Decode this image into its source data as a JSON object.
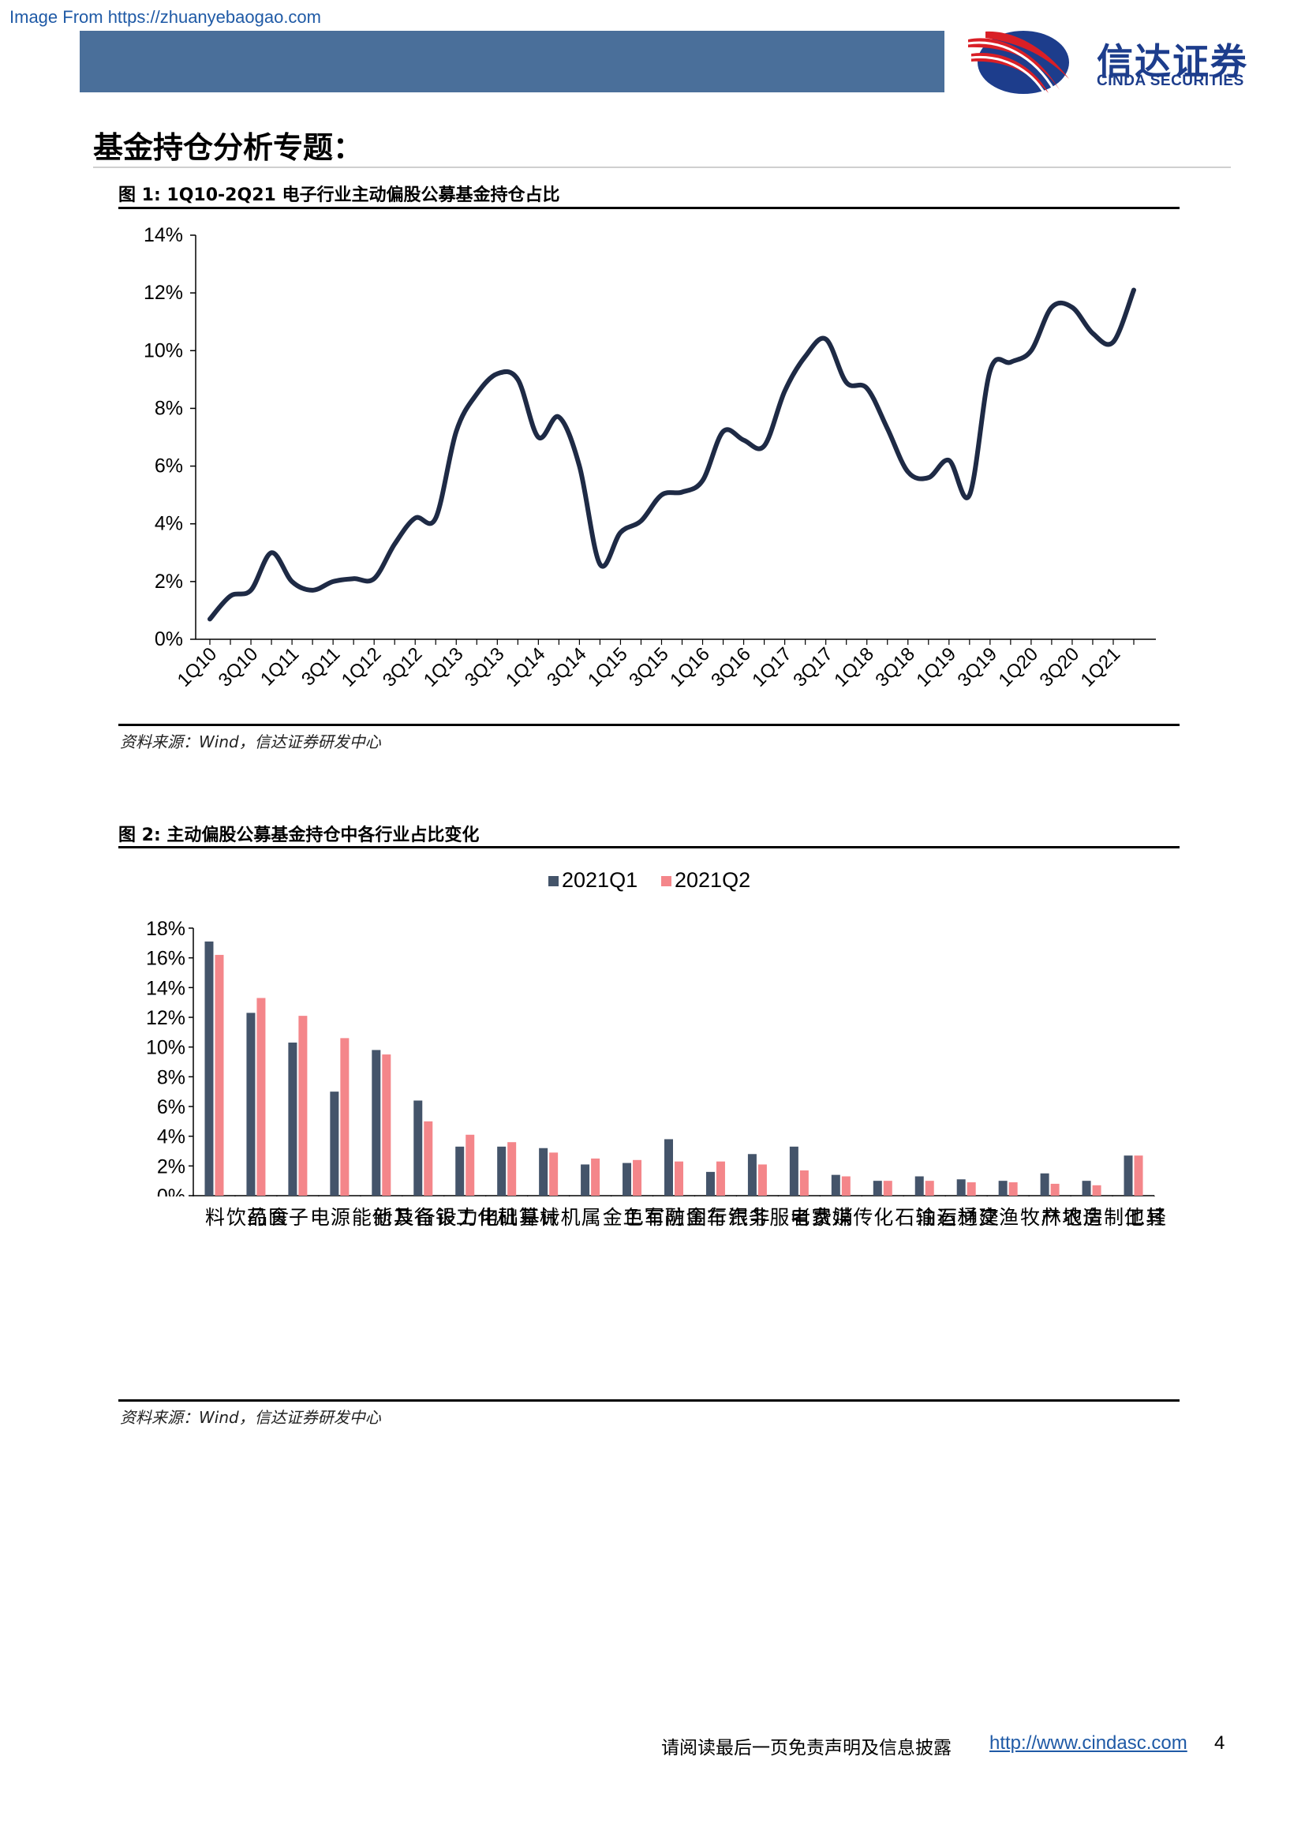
{
  "watermark": "Image From https://zhuanyebaogao.com",
  "brand": {
    "cn": "信达证券",
    "en": "CINDA SECURITIES"
  },
  "section_title": "基金持仓分析专题：",
  "figure1": {
    "title": "图 1:  1Q10-2Q21 电子行业主动偏股公募基金持仓占比",
    "source": "资料来源：Wind，信达证券研发中心"
  },
  "figure2": {
    "title": "图 2:  主动偏股公募基金持仓中各行业占比变化",
    "source": "资料来源：Wind，信达证券研发中心"
  },
  "chart_data": [
    {
      "type": "line",
      "title": "",
      "x": [
        "1Q10",
        "2Q10",
        "3Q10",
        "4Q10",
        "1Q11",
        "2Q11",
        "3Q11",
        "4Q11",
        "1Q12",
        "2Q12",
        "3Q12",
        "4Q12",
        "1Q13",
        "2Q13",
        "3Q13",
        "4Q13",
        "1Q14",
        "2Q14",
        "3Q14",
        "4Q14",
        "1Q15",
        "2Q15",
        "3Q15",
        "4Q15",
        "1Q16",
        "2Q16",
        "3Q16",
        "4Q16",
        "1Q17",
        "2Q17",
        "3Q17",
        "4Q17",
        "1Q18",
        "2Q18",
        "3Q18",
        "4Q18",
        "1Q19",
        "2Q19",
        "3Q19",
        "4Q19",
        "1Q20",
        "2Q20",
        "3Q20",
        "4Q20",
        "1Q21",
        "2Q21"
      ],
      "x_tick_labels": [
        "1Q10",
        "3Q10",
        "1Q11",
        "3Q11",
        "1Q12",
        "3Q12",
        "1Q13",
        "3Q13",
        "1Q14",
        "3Q14",
        "1Q15",
        "3Q15",
        "1Q16",
        "3Q16",
        "1Q17",
        "3Q17",
        "1Q18",
        "3Q18",
        "1Q19",
        "3Q19",
        "1Q20",
        "3Q20",
        "1Q21"
      ],
      "series": [
        {
          "values": [
            0.7,
            1.5,
            1.7,
            3.0,
            2.0,
            1.7,
            2.0,
            2.1,
            2.1,
            3.3,
            4.2,
            4.2,
            7.2,
            8.5,
            9.2,
            9.0,
            7.0,
            7.7,
            6.0,
            2.6,
            3.7,
            4.1,
            5.0,
            5.1,
            5.5,
            7.2,
            6.9,
            6.7,
            8.6,
            9.8,
            10.4,
            8.9,
            8.7,
            7.3,
            5.8,
            5.6,
            6.2,
            5.0,
            9.3,
            9.6,
            10.0,
            11.5,
            11.5,
            10.6,
            10.3,
            12.1
          ]
        }
      ],
      "xlabel": "",
      "ylabel": "",
      "ylim": [
        0,
        14
      ],
      "y_ticks": [
        "0%",
        "2%",
        "4%",
        "6%",
        "8%",
        "10%",
        "12%",
        "14%"
      ],
      "color": "#1e2a45",
      "grid": false
    },
    {
      "type": "bar",
      "title": "",
      "categories": [
        "食品饮料",
        "医药",
        "电子",
        "电力设备及新能源",
        "其他",
        "银行",
        "基础化工",
        "计算机",
        "机械",
        "有色金属",
        "国防军工",
        "非银行金融",
        "汽车",
        "消费者服务",
        "家电",
        "传媒",
        "石油石化",
        "交通运输",
        "建材",
        "农林牧渔",
        "房地产",
        "轻工制造",
        "其他"
      ],
      "series": [
        {
          "name": "2021Q1",
          "color": "#44546a",
          "values": [
            17.1,
            12.3,
            10.3,
            7.0,
            9.8,
            6.4,
            3.3,
            3.3,
            3.2,
            2.1,
            2.2,
            3.8,
            1.6,
            2.8,
            3.3,
            1.4,
            1.0,
            1.3,
            1.1,
            1.0,
            1.5,
            1.0,
            2.7
          ]
        },
        {
          "name": "2021Q2",
          "color": "#f4868a",
          "values": [
            16.2,
            13.3,
            12.1,
            10.6,
            9.5,
            5.0,
            4.1,
            3.6,
            2.9,
            2.5,
            2.4,
            2.3,
            2.3,
            2.1,
            1.7,
            1.3,
            1.0,
            1.0,
            0.9,
            0.9,
            0.8,
            0.7,
            2.7
          ]
        }
      ],
      "xlabel": "",
      "ylabel": "",
      "ylim": [
        0,
        18
      ],
      "y_ticks": [
        "0%",
        "2%",
        "4%",
        "6%",
        "8%",
        "10%",
        "12%",
        "14%",
        "16%",
        "18%"
      ],
      "legend": "top-center",
      "grid": false
    }
  ],
  "footer": {
    "note": "请阅读最后一页免责声明及信息披露",
    "link": "http://www.cindasc.com",
    "page": "4"
  }
}
